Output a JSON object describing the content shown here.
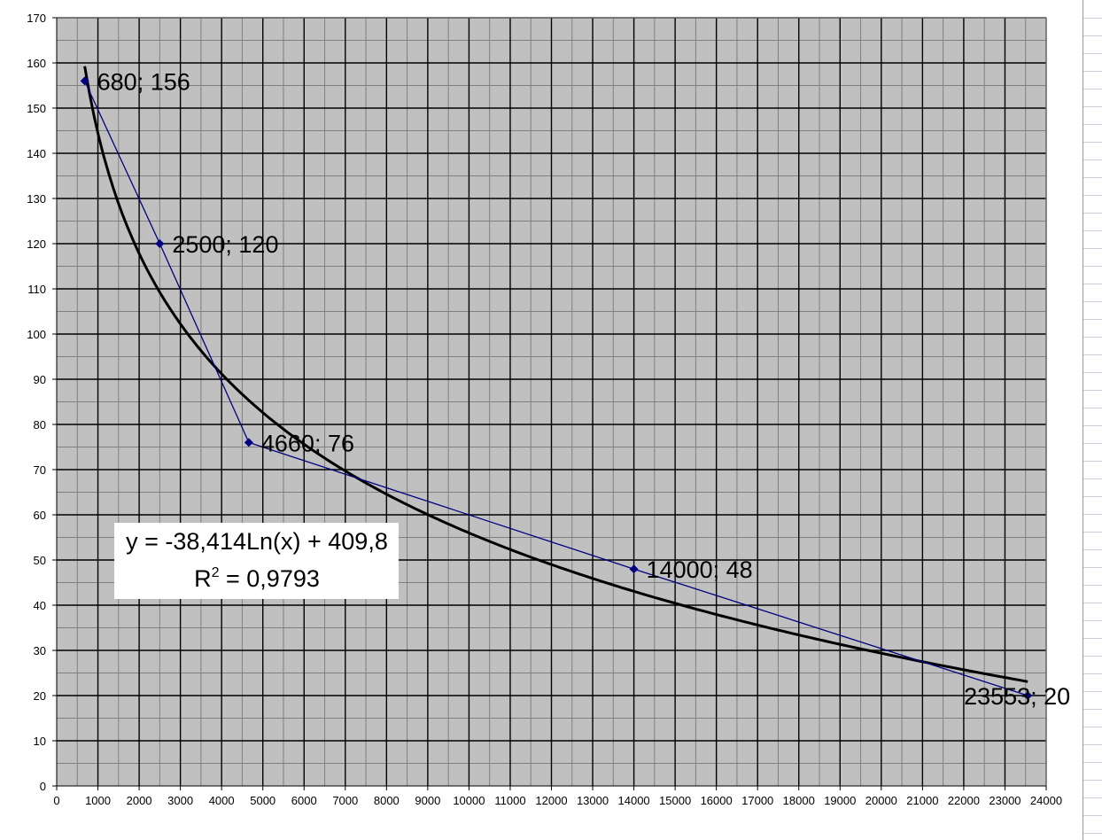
{
  "colors": {
    "plot_background": "#c0c0c0",
    "major_grid": "#000000",
    "minor_grid": "#808080",
    "series_line": "#000080",
    "trendline": "#000000",
    "equation_box": "#ffffff"
  },
  "chart_data": {
    "type": "scatter",
    "title": "",
    "xlabel": "",
    "ylabel": "",
    "xlim": [
      0,
      24000
    ],
    "ylim": [
      0,
      170
    ],
    "x_major_step": 1000,
    "y_major_step": 10,
    "grid": true,
    "legend": "none",
    "x_tick_labels": [
      "0",
      "1000",
      "2000",
      "3000",
      "4000",
      "5000",
      "6000",
      "7000",
      "8000",
      "9000",
      "10000",
      "11000",
      "12000",
      "13000",
      "14000",
      "15000",
      "16000",
      "17000",
      "18000",
      "19000",
      "20000",
      "21000",
      "22000",
      "23000",
      "24000"
    ],
    "y_tick_labels": [
      "0",
      "10",
      "20",
      "30",
      "40",
      "50",
      "60",
      "70",
      "80",
      "90",
      "100",
      "110",
      "120",
      "130",
      "140",
      "150",
      "160",
      "170"
    ],
    "series": [
      {
        "points": [
          {
            "x": 680,
            "y": 156,
            "label": "680; 156"
          },
          {
            "x": 2500,
            "y": 120,
            "label": "2500; 120"
          },
          {
            "x": 4660,
            "y": 76,
            "label": "4660; 76"
          },
          {
            "x": 14000,
            "y": 48,
            "label": "14000; 48"
          },
          {
            "x": 23553,
            "y": 20,
            "label": "23553; 20"
          }
        ]
      }
    ],
    "trendline": {
      "type": "logarithmic",
      "a": -38.414,
      "b": 409.8,
      "x_from": 680,
      "x_to": 23553,
      "equation_label": "y = -38,414Ln(x) + 409,8",
      "r2_prefix": "R",
      "r2_superscript": "2",
      "r2_value": " = 0,9793"
    }
  }
}
